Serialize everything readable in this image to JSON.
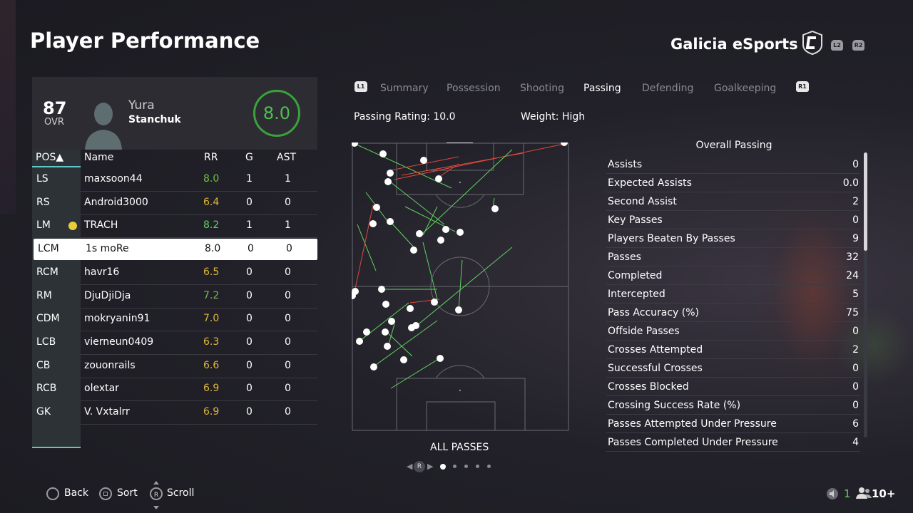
{
  "header": {
    "title": "Player Performance",
    "team": "Galicia eSports",
    "shoulder_left": "L2",
    "shoulder_right": "R2"
  },
  "player_card": {
    "ovr": "87",
    "ovr_label": "OVR",
    "first_name": "Yura",
    "last_name": "Stanchuk",
    "rating": "8.0"
  },
  "table": {
    "headers": {
      "pos": "POS▲",
      "name": "Name",
      "rr": "RR",
      "g": "G",
      "ast": "AST"
    },
    "rows": [
      {
        "pos": "LS",
        "name": "maxsoon44",
        "rr": "8.0",
        "g": "1",
        "ast": "1",
        "color": "green"
      },
      {
        "pos": "RS",
        "name": "Android3000",
        "rr": "6.4",
        "g": "0",
        "ast": "0",
        "color": "yellow"
      },
      {
        "pos": "LM",
        "name": "TRACH",
        "rr": "8.2",
        "g": "1",
        "ast": "1",
        "color": "brightgreen"
      },
      {
        "pos": "LCM",
        "name": "1s moRe",
        "rr": "8.0",
        "g": "0",
        "ast": "0",
        "color": "selected"
      },
      {
        "pos": "RCM",
        "name": "havr16",
        "rr": "6.5",
        "g": "0",
        "ast": "0",
        "color": "yellow"
      },
      {
        "pos": "RM",
        "name": "DjuDjiDja",
        "rr": "7.2",
        "g": "0",
        "ast": "0",
        "color": "green"
      },
      {
        "pos": "CDM",
        "name": "mokryanin91",
        "rr": "7.0",
        "g": "0",
        "ast": "0",
        "color": "yellow"
      },
      {
        "pos": "LCB",
        "name": "vierneun0409",
        "rr": "6.3",
        "g": "0",
        "ast": "0",
        "color": "yellow"
      },
      {
        "pos": "CB",
        "name": "zouonrails",
        "rr": "6.6",
        "g": "0",
        "ast": "0",
        "color": "yellow"
      },
      {
        "pos": "RCB",
        "name": "olextar",
        "rr": "6.9",
        "g": "0",
        "ast": "0",
        "color": "yellow"
      },
      {
        "pos": "GK",
        "name": "V. Vxtalrr",
        "rr": "6.9",
        "g": "0",
        "ast": "0",
        "color": "yellow"
      }
    ]
  },
  "tabs": {
    "left_bumper": "L1",
    "right_bumper": "R1",
    "items": [
      "Summary",
      "Possession",
      "Shooting",
      "Passing",
      "Defending",
      "Goalkeeping"
    ],
    "active": "Passing"
  },
  "passing": {
    "rating": "Passing Rating: 10.0",
    "weight": "Weight: High",
    "map_caption": "ALL PASSES"
  },
  "stats": {
    "title": "Overall Passing",
    "rows": [
      {
        "label": "Assists",
        "value": "0"
      },
      {
        "label": "Expected Assists",
        "value": "0.0"
      },
      {
        "label": "Second Assist",
        "value": "2"
      },
      {
        "label": "Key Passes",
        "value": "0"
      },
      {
        "label": "Players Beaten By Passes",
        "value": "9"
      },
      {
        "label": "Passes",
        "value": "32"
      },
      {
        "label": "Completed",
        "value": "24"
      },
      {
        "label": "Intercepted",
        "value": "5"
      },
      {
        "label": "Pass Accuracy (%)",
        "value": "75"
      },
      {
        "label": "Offside Passes",
        "value": "0"
      },
      {
        "label": "Crosses Attempted",
        "value": "2"
      },
      {
        "label": "Successful Crosses",
        "value": "0"
      },
      {
        "label": "Crosses Blocked",
        "value": "0"
      },
      {
        "label": "Crossing Success Rate (%)",
        "value": "0"
      },
      {
        "label": "Passes Attempted Under Pressure",
        "value": "6"
      },
      {
        "label": "Passes Completed Under Pressure",
        "value": "4"
      }
    ]
  },
  "footer": {
    "back": "Back",
    "sort": "Sort",
    "scroll": "Scroll",
    "scroll_btn": "R",
    "count1": "1",
    "count2": "10+"
  },
  "colors": {
    "accent_cyan": "#5ec8c8",
    "rating_green": "#3aa23a",
    "pass_complete": "#5fd55f",
    "pass_failed": "#e04a3a"
  }
}
